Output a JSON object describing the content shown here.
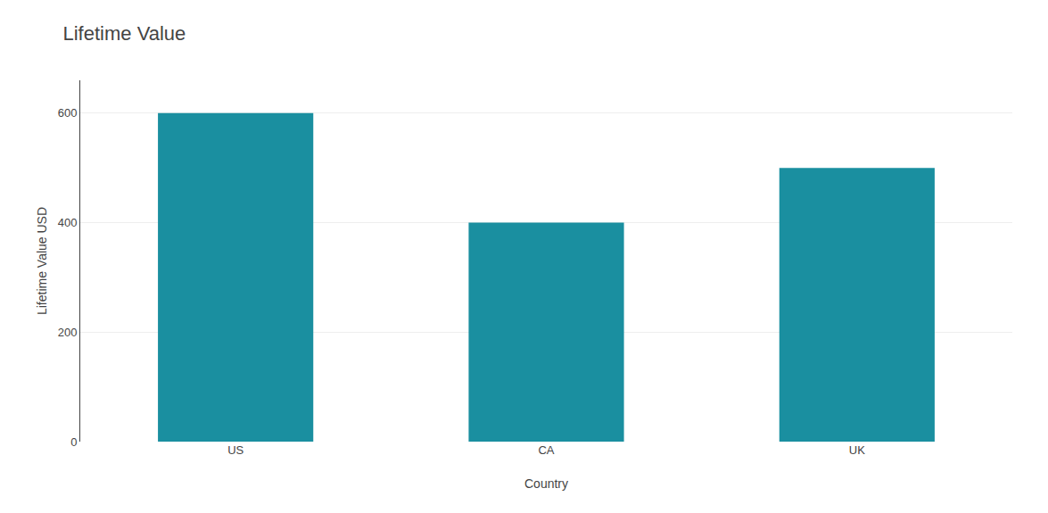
{
  "chart_data": {
    "type": "bar",
    "title": "Lifetime Value",
    "categories": [
      "US",
      "CA",
      "UK"
    ],
    "values": [
      600,
      400,
      500
    ],
    "color": "#1a8fa0",
    "xlabel": "Country",
    "ylabel": "Lifetime Value USD",
    "ylim": [
      0,
      660
    ],
    "yticks": [
      0,
      200,
      400,
      600
    ],
    "grid": true
  }
}
